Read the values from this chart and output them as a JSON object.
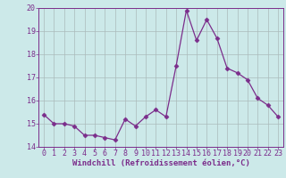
{
  "x": [
    0,
    1,
    2,
    3,
    4,
    5,
    6,
    7,
    8,
    9,
    10,
    11,
    12,
    13,
    14,
    15,
    16,
    17,
    18,
    19,
    20,
    21,
    22,
    23
  ],
  "y": [
    15.4,
    15.0,
    15.0,
    14.9,
    14.5,
    14.5,
    14.4,
    14.3,
    15.2,
    14.9,
    15.3,
    15.6,
    15.3,
    17.5,
    19.9,
    18.6,
    19.5,
    18.7,
    17.4,
    17.2,
    16.9,
    16.1,
    15.8,
    15.3
  ],
  "line_color": "#7b2d8b",
  "marker": "D",
  "marker_size": 2.5,
  "bg_color": "#cce9e9",
  "grid_color": "#aabbbb",
  "xlabel": "Windchill (Refroidissement éolien,°C)",
  "ylim": [
    14,
    20
  ],
  "xlim": [
    -0.5,
    23.5
  ],
  "yticks": [
    14,
    15,
    16,
    17,
    18,
    19,
    20
  ],
  "xticks": [
    0,
    1,
    2,
    3,
    4,
    5,
    6,
    7,
    8,
    9,
    10,
    11,
    12,
    13,
    14,
    15,
    16,
    17,
    18,
    19,
    20,
    21,
    22,
    23
  ],
  "tick_fontsize": 6.0,
  "xlabel_fontsize": 6.5
}
